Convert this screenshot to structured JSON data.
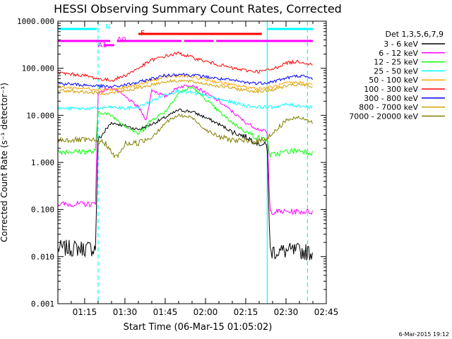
{
  "chart_data": {
    "type": "line",
    "title": "HESSI Observing Summary Count Rates, Corrected",
    "xlabel": "Start Time (06-Mar-15 01:05:02)",
    "ylabel": "Corrected Count Rate (s⁻¹ detector⁻¹)",
    "y_scale": "log",
    "ylim": [
      0.001,
      1000
    ],
    "xlim": [
      "01:05:02",
      "02:45"
    ],
    "x_ticks": [
      "01:15",
      "01:30",
      "01:45",
      "02:00",
      "02:15",
      "02:30",
      "02:45"
    ],
    "y_ticks": [
      "0.001",
      "0.010",
      "0.100",
      "1.000",
      "10.000",
      "100.000",
      "1000.000"
    ],
    "grid": false,
    "legend_title": "Det 1,3,5,6,7,9",
    "legend_position": "right",
    "series": [
      {
        "name": "3 - 6 keV",
        "color": "#000000",
        "x": [
          "01:05",
          "01:19",
          "01:20",
          "01:25",
          "01:30",
          "01:35",
          "01:40",
          "01:45",
          "01:50",
          "01:55",
          "02:00",
          "02:05",
          "02:10",
          "02:15",
          "02:20",
          "02:23",
          "02:24",
          "02:30",
          "02:35",
          "02:40"
        ],
        "values": [
          0.015,
          0.015,
          3.0,
          7.0,
          6.0,
          5.0,
          6.5,
          9.0,
          13.0,
          12.0,
          9.0,
          6.5,
          4.5,
          3.5,
          2.5,
          2.3,
          0.013,
          0.013,
          0.013,
          0.012
        ]
      },
      {
        "name": "6 - 12 keV",
        "color": "#ff00ff",
        "x": [
          "01:05",
          "01:19",
          "01:20",
          "01:25",
          "01:30",
          "01:35",
          "01:38",
          "01:40",
          "01:45",
          "01:50",
          "01:55",
          "02:00",
          "02:05",
          "02:10",
          "02:15",
          "02:20",
          "02:23",
          "02:24",
          "02:30",
          "02:35",
          "02:40"
        ],
        "values": [
          0.13,
          0.13,
          30,
          40,
          25,
          15,
          8,
          35,
          25,
          40,
          45,
          30,
          20,
          12,
          7,
          5,
          4.5,
          0.09,
          0.09,
          0.09,
          0.09
        ]
      },
      {
        "name": "12 - 25 keV",
        "color": "#00ff00",
        "x": [
          "01:05",
          "01:19",
          "01:20",
          "01:25",
          "01:30",
          "01:35",
          "01:40",
          "01:45",
          "01:50",
          "01:55",
          "02:00",
          "02:05",
          "02:10",
          "02:15",
          "02:20",
          "02:23",
          "02:24",
          "02:30",
          "02:35",
          "02:40"
        ],
        "values": [
          1.7,
          1.7,
          12,
          10,
          6,
          4.0,
          8,
          12,
          30,
          40,
          22,
          12,
          7,
          4.5,
          3.2,
          3.0,
          1.4,
          1.7,
          1.8,
          1.6
        ]
      },
      {
        "name": "25 - 50 keV",
        "color": "#00ffff",
        "x": [
          "01:05",
          "01:20",
          "01:25",
          "01:30",
          "01:35",
          "01:40",
          "01:45",
          "01:50",
          "01:55",
          "02:00",
          "02:05",
          "02:10",
          "02:15",
          "02:20",
          "02:25",
          "02:30",
          "02:35",
          "02:40"
        ],
        "values": [
          14,
          14,
          15,
          14,
          15,
          20,
          28,
          33,
          30,
          26,
          22,
          19,
          16,
          15,
          15,
          17,
          16,
          15
        ]
      },
      {
        "name": "50 - 100 keV",
        "color": "#ffa500",
        "x": [
          "01:05",
          "01:20",
          "01:25",
          "01:30",
          "01:35",
          "01:40",
          "01:45",
          "01:50",
          "01:55",
          "02:00",
          "02:05",
          "02:10",
          "02:15",
          "02:20",
          "02:25",
          "02:30",
          "02:35",
          "02:40"
        ],
        "values": [
          40,
          36,
          35,
          38,
          45,
          55,
          65,
          70,
          65,
          58,
          50,
          44,
          40,
          37,
          40,
          48,
          50,
          45
        ]
      },
      {
        "name": "100 - 300 keV",
        "color": "#ff0000",
        "x": [
          "01:05",
          "01:15",
          "01:20",
          "01:25",
          "01:30",
          "01:35",
          "01:40",
          "01:45",
          "01:50",
          "01:55",
          "02:00",
          "02:05",
          "02:10",
          "02:15",
          "02:20",
          "02:25",
          "02:30",
          "02:35",
          "02:40"
        ],
        "values": [
          80,
          70,
          60,
          55,
          70,
          100,
          150,
          180,
          210,
          170,
          140,
          120,
          100,
          90,
          85,
          95,
          130,
          140,
          120
        ]
      },
      {
        "name": "300 - 800 keV",
        "color": "#0000ff",
        "x": [
          "01:05",
          "01:20",
          "01:25",
          "01:30",
          "01:35",
          "01:40",
          "01:45",
          "01:50",
          "01:55",
          "02:00",
          "02:05",
          "02:10",
          "02:15",
          "02:20",
          "02:25",
          "02:30",
          "02:35",
          "02:40"
        ],
        "values": [
          48,
          42,
          40,
          44,
          50,
          60,
          70,
          75,
          72,
          66,
          60,
          55,
          50,
          48,
          52,
          62,
          70,
          60
        ]
      },
      {
        "name": "800 - 7000 keV",
        "color": "#d2a000",
        "x": [
          "01:05",
          "01:20",
          "01:25",
          "01:30",
          "01:35",
          "01:40",
          "01:45",
          "01:50",
          "01:55",
          "02:00",
          "02:05",
          "02:10",
          "02:15",
          "02:20",
          "02:25",
          "02:30",
          "02:35",
          "02:40"
        ],
        "values": [
          34,
          30,
          30,
          33,
          38,
          45,
          52,
          55,
          52,
          47,
          42,
          38,
          34,
          32,
          35,
          42,
          45,
          40
        ]
      },
      {
        "name": "7000 - 20000 keV",
        "color": "#808000",
        "x": [
          "01:05",
          "01:15",
          "01:20",
          "01:23",
          "01:26",
          "01:28",
          "01:30",
          "01:35",
          "01:40",
          "01:45",
          "01:50",
          "01:55",
          "02:00",
          "02:05",
          "02:10",
          "02:15",
          "02:20",
          "02:25",
          "02:30",
          "02:35",
          "02:40"
        ],
        "values": [
          3.0,
          3.0,
          2.8,
          2.5,
          1.3,
          1.5,
          2.5,
          2.6,
          3.5,
          7,
          10,
          9,
          5,
          3.5,
          3.0,
          2.8,
          2.8,
          4,
          8,
          9,
          7
        ]
      }
    ],
    "segments": [
      {
        "label": "N",
        "color": "#00ffff",
        "ranges": [
          [
            "01:05",
            "01:19:30"
          ],
          [
            "02:23",
            "02:40"
          ]
        ]
      },
      {
        "label": "F",
        "color": "#ff0000",
        "ranges": [
          [
            "01:35",
            "02:21"
          ]
        ]
      },
      {
        "label": "A0",
        "color": "#ff00ff",
        "ranges": [
          [
            "01:05",
            "01:24:30"
          ],
          [
            "01:27",
            "01:51"
          ],
          [
            "01:52",
            "02:03"
          ],
          [
            "02:04",
            "02:40"
          ]
        ]
      },
      {
        "label": "A1",
        "color": "#ff00ff",
        "ranges": [
          [
            "01:22",
            "01:26"
          ]
        ]
      }
    ],
    "vlines": [
      {
        "color": "#00ffff",
        "solid": "01:05",
        "dashed": "01:20"
      },
      {
        "color": "#00ffff",
        "solid": "02:23",
        "dashed": "02:38"
      }
    ],
    "footer_date": "6-Mar-2015 19:12"
  }
}
